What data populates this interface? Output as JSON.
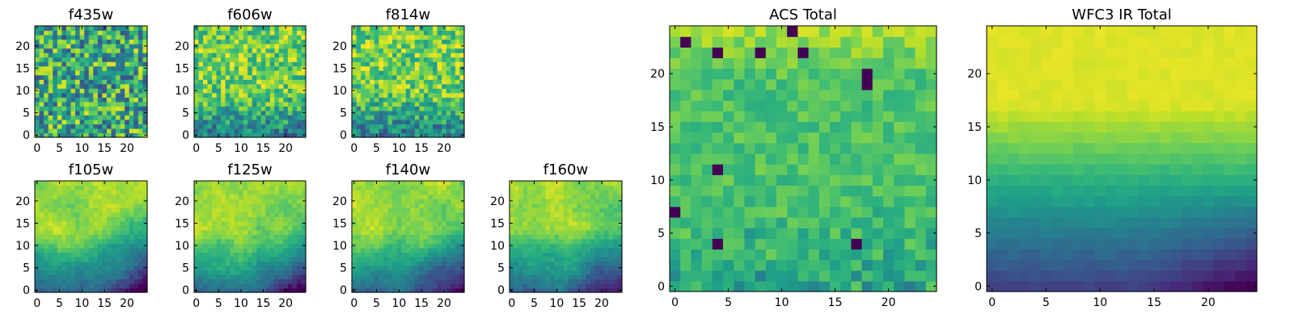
{
  "chart_data": [
    {
      "type": "heatmap",
      "title": "f435w",
      "x": [
        0,
        24
      ],
      "y": [
        0,
        24
      ],
      "xticks": [
        "0",
        "5",
        "10",
        "15",
        "20"
      ],
      "yticks": [
        "0",
        "5",
        "10",
        "15",
        "20"
      ],
      "colormap": "viridis",
      "pattern": "noise"
    },
    {
      "type": "heatmap",
      "title": "f606w",
      "x": [
        0,
        24
      ],
      "y": [
        0,
        24
      ],
      "xticks": [
        "0",
        "5",
        "10",
        "15",
        "20"
      ],
      "yticks": [
        "0",
        "5",
        "10",
        "15",
        "20"
      ],
      "colormap": "viridis",
      "pattern": "noise-darker-bottom"
    },
    {
      "type": "heatmap",
      "title": "f814w",
      "x": [
        0,
        24
      ],
      "y": [
        0,
        24
      ],
      "xticks": [
        "0",
        "5",
        "10",
        "15",
        "20"
      ],
      "yticks": [
        "0",
        "5",
        "10",
        "15",
        "20"
      ],
      "colormap": "viridis",
      "pattern": "noise-darker-bottom"
    },
    {
      "type": "heatmap",
      "title": "f105w",
      "x": [
        0,
        24
      ],
      "y": [
        0,
        24
      ],
      "xticks": [
        "0",
        "5",
        "10",
        "15",
        "20"
      ],
      "yticks": [
        "0",
        "5",
        "10",
        "15",
        "20"
      ],
      "colormap": "viridis",
      "pattern": "smooth-dark-bottom-right"
    },
    {
      "type": "heatmap",
      "title": "f125w",
      "x": [
        0,
        24
      ],
      "y": [
        0,
        24
      ],
      "xticks": [
        "0",
        "5",
        "10",
        "15",
        "20"
      ],
      "yticks": [
        "0",
        "5",
        "10",
        "15",
        "20"
      ],
      "colormap": "viridis",
      "pattern": "smooth-dark-bottom-right"
    },
    {
      "type": "heatmap",
      "title": "f140w",
      "x": [
        0,
        24
      ],
      "y": [
        0,
        24
      ],
      "xticks": [
        "0",
        "5",
        "10",
        "15",
        "20"
      ],
      "yticks": [
        "0",
        "5",
        "10",
        "15",
        "20"
      ],
      "colormap": "viridis",
      "pattern": "smooth-dark-bottom-right"
    },
    {
      "type": "heatmap",
      "title": "f160w",
      "x": [
        0,
        24
      ],
      "y": [
        0,
        24
      ],
      "xticks": [
        "0",
        "5",
        "10",
        "15",
        "20"
      ],
      "yticks": [
        "0",
        "5",
        "10",
        "15",
        "20"
      ],
      "colormap": "viridis",
      "pattern": "smooth-dark-bottom-right"
    },
    {
      "type": "heatmap",
      "title": "ACS Total",
      "x": [
        0,
        24
      ],
      "y": [
        0,
        24
      ],
      "xticks": [
        "0",
        "5",
        "10",
        "15",
        "20"
      ],
      "yticks": [
        "0",
        "5",
        "10",
        "15",
        "20"
      ],
      "colormap": "viridis",
      "pattern": "noise-bright-top-dark-bottom"
    },
    {
      "type": "heatmap",
      "title": "WFC3 IR Total",
      "x": [
        0,
        24
      ],
      "y": [
        0,
        24
      ],
      "xticks": [
        "0",
        "5",
        "10",
        "15",
        "20"
      ],
      "yticks": [
        "0",
        "5",
        "10",
        "15",
        "20"
      ],
      "colormap": "viridis",
      "pattern": "gradient-dark-bottom-right"
    }
  ],
  "colors": {
    "viridis": [
      "#440154",
      "#482878",
      "#3e4989",
      "#31688e",
      "#26828e",
      "#1f9e89",
      "#35b779",
      "#6ece58",
      "#b5de2b",
      "#fde725"
    ]
  }
}
